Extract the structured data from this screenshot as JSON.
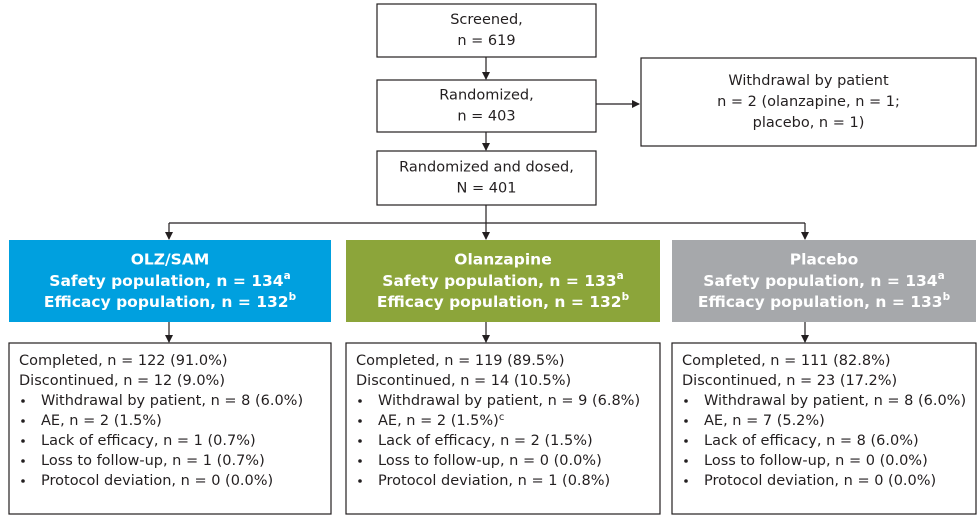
{
  "screened": {
    "lines": [
      "Screened,",
      "n = 619"
    ]
  },
  "randomized": {
    "lines": [
      "Randomized,",
      "n = 403"
    ]
  },
  "withdrawal": {
    "lines": [
      "Withdrawal by patient",
      "n = 2 (olanzapine, n = 1;",
      "placebo, n = 1)"
    ]
  },
  "dosed": {
    "lines": [
      "Randomized and dosed,",
      "N = 401"
    ]
  },
  "arms": [
    {
      "name": "OLZ/SAM",
      "color": "#00a0df",
      "safety": "Safety population, n = 134",
      "safety_note": "a",
      "efficacy": "Efficacy population, n = 132",
      "efficacy_note": "b",
      "completed": "Completed, n = 122 (91.0%)",
      "discontinued": "Discontinued, n = 12 (9.0%)",
      "reasons": [
        {
          "text": "Withdrawal by patient, n = 8 (6.0%)"
        },
        {
          "text": "AE, n = 2 (1.5%)"
        },
        {
          "text": "Lack of efficacy, n = 1 (0.7%)"
        },
        {
          "text": "Loss to follow-up, n = 1 (0.7%)"
        },
        {
          "text": "Protocol deviation, n = 0 (0.0%)"
        }
      ]
    },
    {
      "name": "Olanzapine",
      "color": "#8ca53a",
      "safety": "Safety population, n = 133",
      "safety_note": "a",
      "efficacy": "Efficacy population, n = 132",
      "efficacy_note": "b",
      "completed": "Completed, n = 119 (89.5%)",
      "discontinued": "Discontinued, n = 14 (10.5%)",
      "reasons": [
        {
          "text": "Withdrawal by patient, n = 9 (6.8%)"
        },
        {
          "text": "AE, n = 2 (1.5%)",
          "note": "c"
        },
        {
          "text": "Lack of efficacy, n = 2 (1.5%)"
        },
        {
          "text": "Loss to follow-up, n = 0 (0.0%)"
        },
        {
          "text": "Protocol deviation, n = 1 (0.8%)"
        }
      ]
    },
    {
      "name": "Placebo",
      "color": "#a6a8ab",
      "safety": "Safety population, n = 134",
      "safety_note": "a",
      "efficacy": "Efficacy population, n = 133",
      "efficacy_note": "b",
      "completed": "Completed, n = 111 (82.8%)",
      "discontinued": "Discontinued, n = 23 (17.2%)",
      "reasons": [
        {
          "text": "Withdrawal by patient, n = 8 (6.0%)"
        },
        {
          "text": "AE, n = 7 (5.2%)"
        },
        {
          "text": "Lack of efficacy, n = 8 (6.0%)"
        },
        {
          "text": "Loss to follow-up, n = 0 (0.0%)"
        },
        {
          "text": "Protocol deviation, n = 0 (0.0%)"
        }
      ]
    }
  ]
}
